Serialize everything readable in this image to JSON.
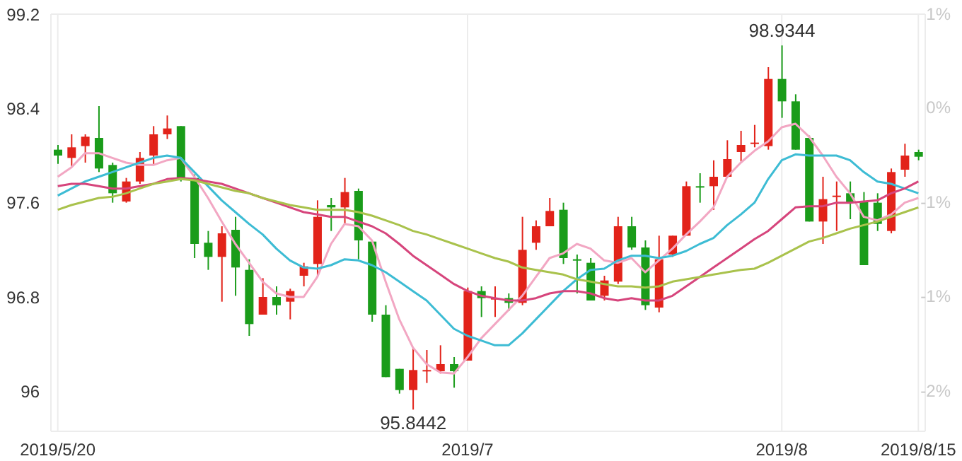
{
  "chart_data": {
    "type": "candlestick",
    "categories": [
      "2019/5/20",
      null,
      null,
      null,
      null,
      null,
      null,
      null,
      null,
      null,
      null,
      null,
      null,
      null,
      null,
      null,
      null,
      null,
      null,
      null,
      null,
      null,
      null,
      null,
      null,
      null,
      null,
      null,
      null,
      null,
      "2019/7",
      null,
      null,
      null,
      null,
      null,
      null,
      null,
      null,
      null,
      null,
      null,
      null,
      null,
      null,
      null,
      null,
      null,
      null,
      null,
      null,
      null,
      null,
      "2019/8",
      null,
      null,
      null,
      null,
      null,
      null,
      null,
      null,
      null,
      "2019/8/15"
    ],
    "ohlc": [
      [
        98.05,
        98.09,
        97.93,
        98.0
      ],
      [
        97.98,
        98.18,
        97.9,
        98.07
      ],
      [
        98.08,
        98.18,
        97.94,
        98.16
      ],
      [
        98.15,
        98.42,
        97.86,
        97.89
      ],
      [
        97.92,
        97.94,
        97.6,
        97.68
      ],
      [
        97.61,
        97.81,
        97.6,
        97.78
      ],
      [
        97.78,
        98.03,
        97.76,
        97.98
      ],
      [
        98.0,
        98.25,
        97.92,
        98.18
      ],
      [
        98.18,
        98.34,
        98.14,
        98.23
      ],
      [
        98.25,
        98.25,
        97.78,
        97.81
      ],
      [
        97.81,
        97.84,
        97.13,
        97.25
      ],
      [
        97.26,
        97.36,
        97.03,
        97.14
      ],
      [
        97.14,
        97.4,
        96.76,
        97.34
      ],
      [
        97.37,
        97.48,
        96.81,
        97.05
      ],
      [
        97.03,
        97.12,
        96.47,
        96.57
      ],
      [
        96.65,
        96.96,
        96.65,
        96.8
      ],
      [
        96.8,
        96.89,
        96.65,
        96.73
      ],
      [
        96.76,
        96.87,
        96.61,
        96.85
      ],
      [
        96.98,
        97.09,
        96.89,
        97.06
      ],
      [
        97.08,
        97.62,
        96.97,
        97.48
      ],
      [
        97.58,
        97.64,
        97.36,
        97.56
      ],
      [
        97.56,
        97.81,
        97.42,
        97.69
      ],
      [
        97.7,
        97.72,
        97.12,
        97.28
      ],
      [
        97.27,
        97.27,
        96.59,
        96.65
      ],
      [
        96.65,
        96.73,
        96.12,
        96.12
      ],
      [
        96.19,
        96.19,
        95.98,
        96.01
      ],
      [
        96.01,
        96.37,
        95.8442,
        96.18
      ],
      [
        96.17,
        96.35,
        96.07,
        96.18
      ],
      [
        96.17,
        96.39,
        96.15,
        96.23
      ],
      [
        96.23,
        96.29,
        96.03,
        96.17
      ],
      [
        96.26,
        96.88,
        96.26,
        96.85
      ],
      [
        96.85,
        96.89,
        96.63,
        96.79
      ],
      [
        96.78,
        96.89,
        96.63,
        96.79
      ],
      [
        96.79,
        96.83,
        96.68,
        96.75
      ],
      [
        96.75,
        97.48,
        96.73,
        97.2
      ],
      [
        97.26,
        97.45,
        97.2,
        97.4
      ],
      [
        97.4,
        97.64,
        97.4,
        97.53
      ],
      [
        97.54,
        97.6,
        97.08,
        97.13
      ],
      [
        97.12,
        97.16,
        96.83,
        97.11
      ],
      [
        97.09,
        97.13,
        96.77,
        96.77
      ],
      [
        96.81,
        96.98,
        96.77,
        96.94
      ],
      [
        96.93,
        97.48,
        96.91,
        97.4
      ],
      [
        97.4,
        97.48,
        97.2,
        97.22
      ],
      [
        97.22,
        97.28,
        96.69,
        96.73
      ],
      [
        96.71,
        97.32,
        96.67,
        97.12
      ],
      [
        97.16,
        97.32,
        97.14,
        97.32
      ],
      [
        97.32,
        97.78,
        97.32,
        97.74
      ],
      [
        97.74,
        97.85,
        97.6,
        97.73
      ],
      [
        97.74,
        97.96,
        97.54,
        97.82
      ],
      [
        97.82,
        98.13,
        97.81,
        97.97
      ],
      [
        98.03,
        98.21,
        97.95,
        98.09
      ],
      [
        98.1,
        98.26,
        98.07,
        98.11
      ],
      [
        98.08,
        98.75,
        98.05,
        98.65
      ],
      [
        98.65,
        98.9344,
        98.32,
        98.46
      ],
      [
        98.46,
        98.52,
        98.05,
        98.05
      ],
      [
        98.15,
        98.17,
        97.44,
        97.44
      ],
      [
        97.44,
        97.82,
        97.25,
        97.63
      ],
      [
        97.65,
        97.78,
        97.36,
        97.66
      ],
      [
        97.68,
        97.78,
        97.46,
        97.6
      ],
      [
        97.61,
        97.69,
        97.07,
        97.07
      ],
      [
        97.6,
        97.68,
        97.36,
        97.42
      ],
      [
        97.36,
        97.89,
        97.34,
        97.86
      ],
      [
        97.88,
        98.1,
        97.82,
        98.0
      ],
      [
        98.03,
        98.05,
        97.96,
        97.99
      ]
    ],
    "series": [
      {
        "type": "line",
        "color": "#f2a7c3",
        "values": [
          97.82,
          97.9,
          98.02,
          98.02,
          97.98,
          97.94,
          97.92,
          97.92,
          97.96,
          97.98,
          97.82,
          97.64,
          97.44,
          97.25,
          97.09,
          96.93,
          96.83,
          96.8,
          96.8,
          96.97,
          97.25,
          97.42,
          97.4,
          97.28,
          96.93,
          96.61,
          96.37,
          96.23,
          96.16,
          96.15,
          96.29,
          96.45,
          96.57,
          96.69,
          96.81,
          96.97,
          97.13,
          97.17,
          97.25,
          97.21,
          97.11,
          97.09,
          97.13,
          97.01,
          97.11,
          97.21,
          97.33,
          97.44,
          97.56,
          97.82,
          97.94,
          98.04,
          98.12,
          98.24,
          98.27,
          98.16,
          98.0,
          97.82,
          97.68,
          97.48,
          97.45,
          97.5,
          97.6,
          97.64
        ]
      },
      {
        "type": "line",
        "color": "#3dbcd4",
        "values": [
          97.66,
          97.72,
          97.78,
          97.82,
          97.86,
          97.9,
          97.94,
          97.98,
          98.0,
          97.98,
          97.86,
          97.74,
          97.62,
          97.52,
          97.42,
          97.33,
          97.21,
          97.11,
          97.05,
          97.04,
          97.07,
          97.12,
          97.11,
          97.07,
          97.01,
          96.93,
          96.85,
          96.77,
          96.65,
          96.53,
          96.47,
          96.43,
          96.39,
          96.39,
          96.49,
          96.61,
          96.73,
          96.85,
          96.95,
          97.03,
          97.04,
          97.11,
          97.15,
          97.15,
          97.13,
          97.15,
          97.19,
          97.25,
          97.3,
          97.41,
          97.5,
          97.6,
          97.8,
          97.96,
          98.01,
          98.0,
          98.0,
          98.0,
          97.96,
          97.86,
          97.78,
          97.76,
          97.72,
          97.68
        ]
      },
      {
        "type": "line",
        "color": "#d6457c",
        "values": [
          97.74,
          97.76,
          97.76,
          97.74,
          97.72,
          97.72,
          97.74,
          97.76,
          97.8,
          97.81,
          97.8,
          97.78,
          97.76,
          97.72,
          97.68,
          97.64,
          97.6,
          97.56,
          97.52,
          97.5,
          97.48,
          97.48,
          97.44,
          97.4,
          97.34,
          97.25,
          97.15,
          97.07,
          96.99,
          96.91,
          96.85,
          96.81,
          96.79,
          96.77,
          96.77,
          96.79,
          96.83,
          96.85,
          96.85,
          96.83,
          96.79,
          96.77,
          96.79,
          96.77,
          96.77,
          96.81,
          96.89,
          96.97,
          97.05,
          97.13,
          97.21,
          97.29,
          97.36,
          97.46,
          97.56,
          97.57,
          97.57,
          97.6,
          97.6,
          97.61,
          97.62,
          97.68,
          97.72,
          97.78
        ]
      },
      {
        "type": "line",
        "color": "#a9c24c",
        "values": [
          97.54,
          97.58,
          97.61,
          97.64,
          97.65,
          97.68,
          97.72,
          97.76,
          97.78,
          97.8,
          97.79,
          97.76,
          97.73,
          97.7,
          97.68,
          97.64,
          97.61,
          97.58,
          97.56,
          97.54,
          97.54,
          97.54,
          97.52,
          97.49,
          97.45,
          97.41,
          97.36,
          97.33,
          97.29,
          97.25,
          97.21,
          97.17,
          97.13,
          97.1,
          97.05,
          97.03,
          97.01,
          96.99,
          96.95,
          96.93,
          96.91,
          96.89,
          96.89,
          96.88,
          96.89,
          96.93,
          96.95,
          96.97,
          96.99,
          97.01,
          97.03,
          97.04,
          97.09,
          97.15,
          97.21,
          97.27,
          97.3,
          97.34,
          97.38,
          97.41,
          97.44,
          97.48,
          97.52,
          97.56
        ]
      }
    ],
    "ylim": [
      95.66,
      99.2
    ],
    "yticks": [
      96,
      96.8,
      97.6,
      98.4,
      99.2
    ],
    "y2lim": [
      -2.61,
      1
    ],
    "y2ticks": [
      {
        "value": 1,
        "label": "1%"
      },
      {
        "value": 0.19,
        "label": "0%"
      },
      {
        "value": -0.63,
        "label": "-1%"
      },
      {
        "value": -1.44,
        "label": "-1%"
      },
      {
        "value": -2.26,
        "label": "-2%"
      }
    ],
    "grid": true,
    "legend": false,
    "annotations": [
      {
        "text": "98.9344",
        "y": 98.9344
      },
      {
        "text": "95.8442",
        "y": 95.8442
      }
    ]
  }
}
